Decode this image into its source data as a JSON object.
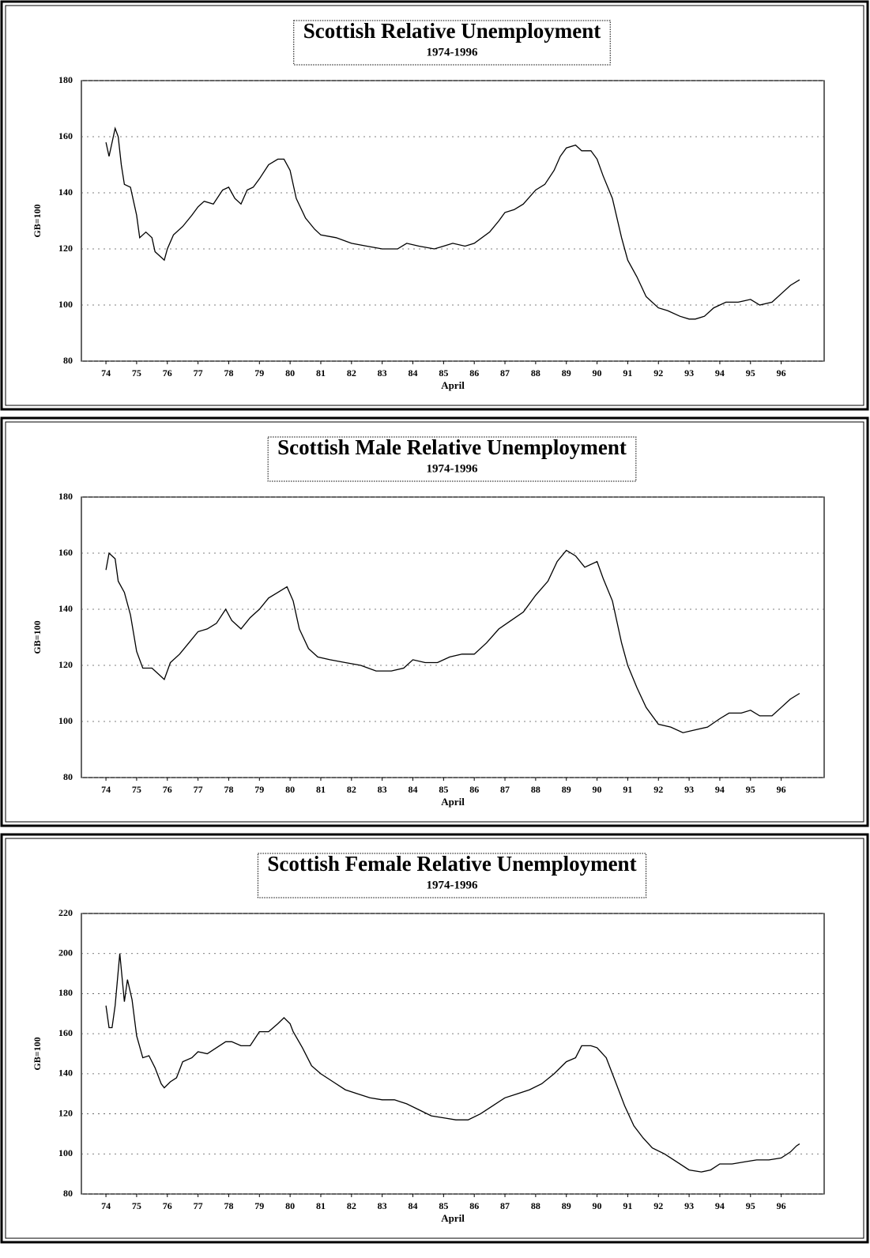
{
  "chart_data": [
    {
      "type": "line",
      "title": "Scottish Relative Unemployment",
      "subtitle": "1974-1996",
      "ylabel": "GB=100",
      "xlabel": "April",
      "color": "#000000",
      "grid": true,
      "xlim": [
        73.2,
        97.4
      ],
      "xticks": [
        74,
        75,
        76,
        77,
        78,
        79,
        80,
        81,
        82,
        83,
        84,
        85,
        86,
        87,
        88,
        89,
        90,
        91,
        92,
        93,
        94,
        95,
        96
      ],
      "ylim": [
        80,
        180
      ],
      "yticks": [
        80,
        100,
        120,
        140,
        160,
        180
      ],
      "x": [
        74.0,
        74.1,
        74.3,
        74.4,
        74.5,
        74.6,
        74.8,
        75.0,
        75.1,
        75.3,
        75.5,
        75.6,
        75.8,
        75.9,
        76.0,
        76.2,
        76.5,
        76.8,
        77.0,
        77.2,
        77.5,
        77.8,
        78.0,
        78.2,
        78.4,
        78.6,
        78.8,
        79.0,
        79.3,
        79.6,
        79.8,
        80.0,
        80.2,
        80.5,
        80.8,
        81.0,
        81.5,
        82.0,
        82.5,
        83.0,
        83.5,
        83.8,
        84.2,
        84.7,
        85.0,
        85.3,
        85.7,
        86.0,
        86.5,
        86.8,
        87.0,
        87.3,
        87.6,
        88.0,
        88.3,
        88.6,
        88.8,
        89.0,
        89.3,
        89.5,
        89.8,
        90.0,
        90.2,
        90.5,
        90.8,
        91.0,
        91.3,
        91.6,
        92.0,
        92.3,
        92.7,
        93.0,
        93.2,
        93.5,
        93.8,
        94.2,
        94.6,
        95.0,
        95.3,
        95.7,
        96.0,
        96.3,
        96.6
      ],
      "values": [
        158,
        153,
        163,
        160,
        150,
        143,
        142,
        132,
        124,
        126,
        124,
        119,
        117,
        116,
        120,
        125,
        128,
        132,
        135,
        137,
        136,
        141,
        142,
        138,
        136,
        141,
        142,
        145,
        150,
        152,
        152,
        148,
        138,
        131,
        127,
        125,
        124,
        122,
        121,
        120,
        120,
        122,
        121,
        120,
        121,
        122,
        121,
        122,
        126,
        130,
        133,
        134,
        136,
        141,
        143,
        148,
        153,
        156,
        157,
        155,
        155,
        152,
        146,
        138,
        124,
        116,
        110,
        103,
        99,
        98,
        96,
        95,
        95,
        96,
        99,
        101,
        101,
        102,
        100,
        101,
        104,
        107,
        109
      ]
    },
    {
      "type": "line",
      "title": "Scottish Male Relative Unemployment",
      "subtitle": "1974-1996",
      "ylabel": "GB=100",
      "xlabel": "April",
      "color": "#000000",
      "grid": true,
      "xlim": [
        73.2,
        97.4
      ],
      "xticks": [
        74,
        75,
        76,
        77,
        78,
        79,
        80,
        81,
        82,
        83,
        84,
        85,
        86,
        87,
        88,
        89,
        90,
        91,
        92,
        93,
        94,
        95,
        96
      ],
      "ylim": [
        80,
        180
      ],
      "yticks": [
        80,
        100,
        120,
        140,
        160,
        180
      ],
      "x": [
        74.0,
        74.1,
        74.3,
        74.4,
        74.6,
        74.8,
        75.0,
        75.2,
        75.5,
        75.7,
        75.9,
        76.1,
        76.4,
        76.7,
        77.0,
        77.3,
        77.6,
        77.9,
        78.1,
        78.4,
        78.7,
        79.0,
        79.3,
        79.6,
        79.9,
        80.1,
        80.3,
        80.6,
        80.9,
        81.3,
        81.8,
        82.3,
        82.8,
        83.3,
        83.7,
        84.0,
        84.4,
        84.8,
        85.2,
        85.6,
        86.0,
        86.4,
        86.8,
        87.2,
        87.6,
        88.0,
        88.4,
        88.7,
        89.0,
        89.3,
        89.6,
        90.0,
        90.2,
        90.5,
        90.8,
        91.0,
        91.3,
        91.6,
        92.0,
        92.4,
        92.8,
        93.2,
        93.6,
        94.0,
        94.3,
        94.7,
        95.0,
        95.3,
        95.7,
        96.0,
        96.3,
        96.6
      ],
      "values": [
        154,
        160,
        158,
        150,
        146,
        138,
        125,
        119,
        119,
        117,
        115,
        121,
        124,
        128,
        132,
        133,
        135,
        140,
        136,
        133,
        137,
        140,
        144,
        146,
        148,
        143,
        133,
        126,
        123,
        122,
        121,
        120,
        118,
        118,
        119,
        122,
        121,
        121,
        123,
        124,
        124,
        128,
        133,
        136,
        139,
        145,
        150,
        157,
        161,
        159,
        155,
        157,
        151,
        143,
        128,
        120,
        112,
        105,
        99,
        98,
        96,
        97,
        98,
        101,
        103,
        103,
        104,
        102,
        102,
        105,
        108,
        110
      ]
    },
    {
      "type": "line",
      "title": "Scottish Female Relative Unemployment",
      "subtitle": "1974-1996",
      "ylabel": "GB=100",
      "xlabel": "April",
      "color": "#000000",
      "grid": true,
      "xlim": [
        73.2,
        97.4
      ],
      "xticks": [
        74,
        75,
        76,
        77,
        78,
        79,
        80,
        81,
        82,
        83,
        84,
        85,
        86,
        87,
        88,
        89,
        90,
        91,
        92,
        93,
        94,
        95,
        96
      ],
      "ylim": [
        80,
        220
      ],
      "yticks": [
        80,
        100,
        120,
        140,
        160,
        180,
        200,
        220
      ],
      "x": [
        74.0,
        74.1,
        74.2,
        74.3,
        74.45,
        74.6,
        74.7,
        74.85,
        75.0,
        75.2,
        75.4,
        75.6,
        75.8,
        75.9,
        76.1,
        76.3,
        76.5,
        76.8,
        77.0,
        77.3,
        77.6,
        77.9,
        78.1,
        78.4,
        78.7,
        79.0,
        79.3,
        79.6,
        79.8,
        80.0,
        80.1,
        80.4,
        80.7,
        81.0,
        81.4,
        81.8,
        82.2,
        82.6,
        83.0,
        83.4,
        83.8,
        84.2,
        84.6,
        85.0,
        85.4,
        85.8,
        86.2,
        86.6,
        87.0,
        87.4,
        87.8,
        88.2,
        88.6,
        89.0,
        89.3,
        89.5,
        89.8,
        90.0,
        90.3,
        90.6,
        90.9,
        91.2,
        91.5,
        91.8,
        92.2,
        92.6,
        93.0,
        93.4,
        93.7,
        94.0,
        94.4,
        94.8,
        95.2,
        95.6,
        96.0,
        96.3,
        96.5,
        96.6
      ],
      "values": [
        174,
        163,
        163,
        174,
        200,
        176,
        187,
        177,
        159,
        148,
        149,
        143,
        135,
        133,
        136,
        138,
        146,
        148,
        151,
        150,
        153,
        156,
        156,
        154,
        154,
        161,
        161,
        165,
        168,
        165,
        161,
        153,
        144,
        140,
        136,
        132,
        130,
        128,
        127,
        127,
        125,
        122,
        119,
        118,
        117,
        117,
        120,
        124,
        128,
        130,
        132,
        135,
        140,
        146,
        148,
        154,
        154,
        153,
        148,
        136,
        124,
        114,
        108,
        103,
        100,
        96,
        92,
        91,
        92,
        95,
        95,
        96,
        97,
        97,
        98,
        101,
        104,
        105
      ]
    }
  ]
}
